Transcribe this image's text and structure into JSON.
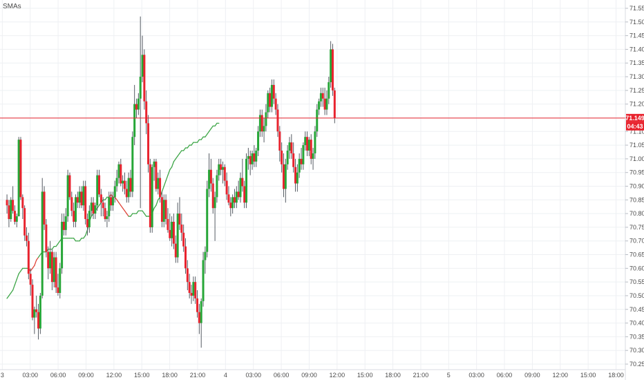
{
  "indicator_label": "SMAs",
  "colors": {
    "up": "#26a637",
    "down": "#e8232e",
    "sma_up": "#3ea648",
    "sma_down": "#e0453a",
    "grid": "#eef0f3",
    "axis_text": "#4a4a4a",
    "price_line": "#e8232e",
    "price_badge": "#e8232e",
    "timer_badge": "#e8232e"
  },
  "chart_data": {
    "type": "candlestick",
    "title": "",
    "price_axis": {
      "min": 70.25,
      "max": 71.55,
      "step": 0.05,
      "labels": [
        "71.550",
        "71.500",
        "71.450",
        "71.400",
        "71.350",
        "71.300",
        "71.250",
        "71.200",
        "71.150",
        "71.100",
        "71.050",
        "71.000",
        "70.950",
        "70.900",
        "70.850",
        "70.800",
        "70.750",
        "70.700",
        "70.650",
        "70.600",
        "70.550",
        "70.500",
        "70.450",
        "70.400",
        "70.350",
        "70.300",
        "70.250"
      ]
    },
    "time_axis": {
      "labels": [
        "3",
        "03:00",
        "06:00",
        "09:00",
        "12:00",
        "15:00",
        "18:00",
        "21:00",
        "4",
        "03:00",
        "06:00",
        "09:00",
        "12:00",
        "15:00",
        "18:00",
        "21:00",
        "5",
        "03:00",
        "06:00",
        "09:00",
        "12:00",
        "15:00",
        "18:00"
      ],
      "positions": [
        0,
        3,
        6,
        9,
        12,
        15,
        18,
        21,
        24,
        27,
        30,
        33,
        36,
        39,
        42,
        45,
        48,
        51,
        54,
        57,
        60,
        63,
        66
      ],
      "range": [
        -0.25,
        67
      ]
    },
    "last_price": 71.149,
    "last_price_label": "71.149",
    "countdown_label": "04:43",
    "candles": [
      [
        70.85,
        70.87,
        70.8,
        70.83
      ],
      [
        70.83,
        70.85,
        70.75,
        70.78
      ],
      [
        70.78,
        70.86,
        70.77,
        70.85
      ],
      [
        70.85,
        70.9,
        70.8,
        70.81
      ],
      [
        70.81,
        70.83,
        70.76,
        70.77
      ],
      [
        70.77,
        70.8,
        70.75,
        70.79
      ],
      [
        70.79,
        71.08,
        70.79,
        71.07
      ],
      [
        71.07,
        71.08,
        70.85,
        70.86
      ],
      [
        70.86,
        70.87,
        70.78,
        70.82
      ],
      [
        70.82,
        70.83,
        70.7,
        70.72
      ],
      [
        70.72,
        70.75,
        70.68,
        70.7
      ],
      [
        70.7,
        70.73,
        70.56,
        70.58
      ],
      [
        70.58,
        70.6,
        70.5,
        70.54
      ],
      [
        70.54,
        70.56,
        70.41,
        70.42
      ],
      [
        70.42,
        70.46,
        70.36,
        70.45
      ],
      [
        70.45,
        70.5,
        70.42,
        70.44
      ],
      [
        70.44,
        70.47,
        70.34,
        70.38
      ],
      [
        70.38,
        70.51,
        70.36,
        70.5
      ],
      [
        70.5,
        70.93,
        70.49,
        70.88
      ],
      [
        70.88,
        70.9,
        70.74,
        70.76
      ],
      [
        70.76,
        70.78,
        70.64,
        70.66
      ],
      [
        70.66,
        70.68,
        70.56,
        70.6
      ],
      [
        70.6,
        70.7,
        70.58,
        70.66
      ],
      [
        70.66,
        70.67,
        70.52,
        70.55
      ],
      [
        70.55,
        70.66,
        70.53,
        70.64
      ],
      [
        70.64,
        70.66,
        70.51,
        70.53
      ],
      [
        70.53,
        70.58,
        70.5,
        70.51
      ],
      [
        70.51,
        70.62,
        70.49,
        70.6
      ],
      [
        70.6,
        70.8,
        70.58,
        70.77
      ],
      [
        70.77,
        70.8,
        70.72,
        70.74
      ],
      [
        70.74,
        70.82,
        70.72,
        70.79
      ],
      [
        70.79,
        70.96,
        70.77,
        70.94
      ],
      [
        70.94,
        70.95,
        70.85,
        70.86
      ],
      [
        70.86,
        70.88,
        70.79,
        70.81
      ],
      [
        70.81,
        70.84,
        70.75,
        70.77
      ],
      [
        70.77,
        70.87,
        70.75,
        70.86
      ],
      [
        70.86,
        70.88,
        70.82,
        70.84
      ],
      [
        70.84,
        70.9,
        70.82,
        70.88
      ],
      [
        70.88,
        70.9,
        70.82,
        70.83
      ],
      [
        70.83,
        70.92,
        70.81,
        70.9
      ],
      [
        70.9,
        70.92,
        70.76,
        70.78
      ],
      [
        70.78,
        70.8,
        70.72,
        70.75
      ],
      [
        70.75,
        70.83,
        70.73,
        70.81
      ],
      [
        70.81,
        70.86,
        70.79,
        70.84
      ],
      [
        70.84,
        70.86,
        70.78,
        70.8
      ],
      [
        70.8,
        70.84,
        70.78,
        70.83
      ],
      [
        70.83,
        70.96,
        70.81,
        70.94
      ],
      [
        70.94,
        70.96,
        70.86,
        70.87
      ],
      [
        70.87,
        70.89,
        70.79,
        70.84
      ],
      [
        70.84,
        70.86,
        70.79,
        70.82
      ],
      [
        70.82,
        70.84,
        70.77,
        70.78
      ],
      [
        70.78,
        70.81,
        70.75,
        70.79
      ],
      [
        70.79,
        70.88,
        70.77,
        70.86
      ],
      [
        70.86,
        70.88,
        70.81,
        70.83
      ],
      [
        70.83,
        70.88,
        70.81,
        70.86
      ],
      [
        70.86,
        70.92,
        70.84,
        70.9
      ],
      [
        70.9,
        70.96,
        70.88,
        70.93
      ],
      [
        70.93,
        70.99,
        70.91,
        70.98
      ],
      [
        70.98,
        71.0,
        70.9,
        70.91
      ],
      [
        70.91,
        70.94,
        70.88,
        70.92
      ],
      [
        70.92,
        70.95,
        70.87,
        70.89
      ],
      [
        70.89,
        70.92,
        70.84,
        70.86
      ],
      [
        70.86,
        70.95,
        70.84,
        70.93
      ],
      [
        70.93,
        70.96,
        70.86,
        70.88
      ],
      [
        70.88,
        71.1,
        70.86,
        71.08
      ],
      [
        71.08,
        71.27,
        71.05,
        71.2
      ],
      [
        71.2,
        71.22,
        71.15,
        71.18
      ],
      [
        71.18,
        71.24,
        71.16,
        71.22
      ],
      [
        71.22,
        71.52,
        70.82,
        71.3
      ],
      [
        71.3,
        71.45,
        71.28,
        71.38
      ],
      [
        71.38,
        71.4,
        71.18,
        71.21
      ],
      [
        71.21,
        71.25,
        71.09,
        71.13
      ],
      [
        71.13,
        71.16,
        70.95,
        70.98
      ],
      [
        70.98,
        71.0,
        70.73,
        70.75
      ],
      [
        70.75,
        70.98,
        70.73,
        70.97
      ],
      [
        70.97,
        71.0,
        70.92,
        70.99
      ],
      [
        70.99,
        71.0,
        70.88,
        70.89
      ],
      [
        70.89,
        70.95,
        70.87,
        70.93
      ],
      [
        70.93,
        70.96,
        70.84,
        70.86
      ],
      [
        70.86,
        70.88,
        70.75,
        70.77
      ],
      [
        70.77,
        70.87,
        70.75,
        70.85
      ],
      [
        70.85,
        70.87,
        70.76,
        70.78
      ],
      [
        70.78,
        70.82,
        70.73,
        70.74
      ],
      [
        70.74,
        70.8,
        70.7,
        70.71
      ],
      [
        70.71,
        70.79,
        70.68,
        70.77
      ],
      [
        70.77,
        70.8,
        70.67,
        70.69
      ],
      [
        70.69,
        70.72,
        70.62,
        70.64
      ],
      [
        70.64,
        70.84,
        70.62,
        70.8
      ],
      [
        70.8,
        70.86,
        70.74,
        70.76
      ],
      [
        70.76,
        70.8,
        70.7,
        70.73
      ],
      [
        70.73,
        70.76,
        70.66,
        70.68
      ],
      [
        70.68,
        70.71,
        70.58,
        70.6
      ],
      [
        70.6,
        70.63,
        70.52,
        70.55
      ],
      [
        70.55,
        70.58,
        70.49,
        70.51
      ],
      [
        70.51,
        70.54,
        70.47,
        70.5
      ],
      [
        70.5,
        70.57,
        70.48,
        70.55
      ],
      [
        70.55,
        70.57,
        70.47,
        70.49
      ],
      [
        70.49,
        70.52,
        70.42,
        70.44
      ],
      [
        70.44,
        70.47,
        70.36,
        70.4
      ],
      [
        70.4,
        70.49,
        70.31,
        70.48
      ],
      [
        70.48,
        70.66,
        70.46,
        70.63
      ],
      [
        70.63,
        70.68,
        70.58,
        70.66
      ],
      [
        70.66,
        70.92,
        70.64,
        70.89
      ],
      [
        70.89,
        71.02,
        70.86,
        70.96
      ],
      [
        70.96,
        71.0,
        70.88,
        70.91
      ],
      [
        70.91,
        70.93,
        70.8,
        70.82
      ],
      [
        70.82,
        70.88,
        70.7,
        70.86
      ],
      [
        70.86,
        70.96,
        70.84,
        70.94
      ],
      [
        70.94,
        71.0,
        70.92,
        70.98
      ],
      [
        70.98,
        71.0,
        70.94,
        70.96
      ],
      [
        70.96,
        70.99,
        70.91,
        70.97
      ],
      [
        70.97,
        70.98,
        70.9,
        70.92
      ],
      [
        70.92,
        70.95,
        70.85,
        70.87
      ],
      [
        70.87,
        70.9,
        70.83,
        70.84
      ],
      [
        70.84,
        70.86,
        70.79,
        70.82
      ],
      [
        70.82,
        70.87,
        70.8,
        70.86
      ],
      [
        70.86,
        70.89,
        70.82,
        70.84
      ],
      [
        70.84,
        70.9,
        70.82,
        70.88
      ],
      [
        70.88,
        70.92,
        70.85,
        70.86
      ],
      [
        70.86,
        70.95,
        70.84,
        70.93
      ],
      [
        70.93,
        71.0,
        70.88,
        70.9
      ],
      [
        70.9,
        70.92,
        70.82,
        70.84
      ],
      [
        70.84,
        71.02,
        70.82,
        71.0
      ],
      [
        71.0,
        71.04,
        70.96,
        71.01
      ],
      [
        71.01,
        71.03,
        70.94,
        70.98
      ],
      [
        70.98,
        71.03,
        70.96,
        71.02
      ],
      [
        71.02,
        71.05,
        70.97,
        70.99
      ],
      [
        70.99,
        71.04,
        70.97,
        71.03
      ],
      [
        71.03,
        71.12,
        71.01,
        71.1
      ],
      [
        71.1,
        71.18,
        71.08,
        71.16
      ],
      [
        71.16,
        71.18,
        71.08,
        71.1
      ],
      [
        71.1,
        71.15,
        71.06,
        71.12
      ],
      [
        71.12,
        71.2,
        71.1,
        71.17
      ],
      [
        71.17,
        71.25,
        71.15,
        71.24
      ],
      [
        71.24,
        71.26,
        71.17,
        71.19
      ],
      [
        71.19,
        71.29,
        71.17,
        71.27
      ],
      [
        71.27,
        71.29,
        71.2,
        71.22
      ],
      [
        71.22,
        71.24,
        71.16,
        71.18
      ],
      [
        71.18,
        71.2,
        71.08,
        71.1
      ],
      [
        71.1,
        71.12,
        70.99,
        71.03
      ],
      [
        71.03,
        71.06,
        70.95,
        70.98
      ],
      [
        70.98,
        71.02,
        70.86,
        70.89
      ],
      [
        70.89,
        71.0,
        70.84,
        70.98
      ],
      [
        70.98,
        71.05,
        70.96,
        71.03
      ],
      [
        71.03,
        71.08,
        71.0,
        71.06
      ],
      [
        71.06,
        71.09,
        71.0,
        71.02
      ],
      [
        71.02,
        71.06,
        70.95,
        70.97
      ],
      [
        70.97,
        71.0,
        70.88,
        70.91
      ],
      [
        70.91,
        70.98,
        70.88,
        70.95
      ],
      [
        70.95,
        71.02,
        70.93,
        71.0
      ],
      [
        71.0,
        71.04,
        70.96,
        70.98
      ],
      [
        70.98,
        71.06,
        70.96,
        71.05
      ],
      [
        71.05,
        71.1,
        71.03,
        71.08
      ],
      [
        71.08,
        71.1,
        71.01,
        71.03
      ],
      [
        71.03,
        71.08,
        71.01,
        71.07
      ],
      [
        71.07,
        71.09,
        70.98,
        71.0
      ],
      [
        71.0,
        71.04,
        70.96,
        71.02
      ],
      [
        71.02,
        71.12,
        71.0,
        71.1
      ],
      [
        71.1,
        71.2,
        71.08,
        71.18
      ],
      [
        71.18,
        71.22,
        71.16,
        71.21
      ],
      [
        71.21,
        71.26,
        71.19,
        71.24
      ],
      [
        71.24,
        71.26,
        71.19,
        71.22
      ],
      [
        71.22,
        71.26,
        71.16,
        71.18
      ],
      [
        71.18,
        71.25,
        71.16,
        71.22
      ],
      [
        71.22,
        71.3,
        71.2,
        71.28
      ],
      [
        71.28,
        71.43,
        71.26,
        71.4
      ],
      [
        71.4,
        71.42,
        71.23,
        71.25
      ],
      [
        71.25,
        71.26,
        71.13,
        71.15
      ]
    ],
    "sma": [
      70.49,
      70.5,
      70.51,
      70.52,
      70.54,
      70.56,
      70.58,
      70.59,
      70.6,
      70.6,
      70.6,
      70.6,
      70.59,
      70.6,
      70.61,
      70.63,
      70.64,
      70.65,
      70.66,
      70.66,
      70.66,
      70.67,
      70.67,
      70.67,
      70.68,
      70.68,
      70.69,
      70.7,
      70.71,
      70.71,
      70.71,
      70.71,
      70.71,
      70.71,
      70.71,
      70.7,
      70.7,
      70.7,
      70.71,
      70.71,
      70.72,
      70.74,
      70.77,
      70.79,
      70.8,
      70.81,
      70.82,
      70.83,
      70.84,
      70.85,
      70.85,
      70.86,
      70.86,
      70.87,
      70.86,
      70.86,
      70.85,
      70.84,
      70.83,
      70.82,
      70.81,
      70.8,
      70.79,
      70.79,
      70.8,
      70.8,
      70.8,
      70.81,
      70.81,
      70.81,
      70.8,
      70.79,
      70.79,
      70.79,
      70.8,
      70.82,
      70.83,
      70.85,
      70.86,
      70.88,
      70.9,
      70.92,
      70.94,
      70.96,
      70.97,
      70.99,
      71.0,
      71.01,
      71.02,
      71.03,
      71.03,
      71.04,
      71.04,
      71.05,
      71.05,
      71.06,
      71.06,
      71.06,
      71.07,
      71.07,
      71.08,
      71.08,
      71.09,
      71.1,
      71.11,
      71.12,
      71.12,
      71.13,
      71.13
    ],
    "sma_colors": [
      "up",
      "up",
      "up",
      "up",
      "up",
      "up",
      "up",
      "up",
      "up",
      "up",
      "up",
      "up",
      "down",
      "down",
      "down",
      "down",
      "down",
      "up",
      "up",
      "up",
      "up",
      "up",
      "up",
      "up",
      "up",
      "up",
      "up",
      "up",
      "up",
      "up",
      "up",
      "up",
      "up",
      "up",
      "up",
      "up",
      "up",
      "up",
      "up",
      "up",
      "up",
      "up",
      "up",
      "up",
      "up",
      "up",
      "up",
      "up",
      "up",
      "up",
      "up",
      "up",
      "up",
      "down",
      "down",
      "down",
      "down",
      "down",
      "down",
      "down",
      "down",
      "down",
      "down",
      "up",
      "up",
      "up",
      "up",
      "up",
      "up",
      "up",
      "up",
      "up",
      "up",
      "up",
      "up",
      "up",
      "up",
      "up",
      "up",
      "up",
      "up",
      "up",
      "up",
      "up",
      "up",
      "up",
      "up",
      "up",
      "up",
      "up",
      "up",
      "up",
      "up",
      "up",
      "up",
      "up",
      "up",
      "up",
      "up",
      "up",
      "up",
      "up",
      "up",
      "up",
      "up",
      "up",
      "up",
      "up",
      "up"
    ]
  }
}
